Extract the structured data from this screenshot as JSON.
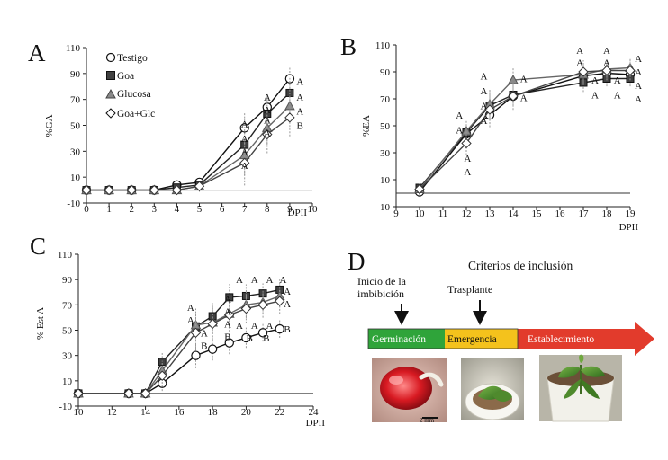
{
  "colors": {
    "germination": "#2fa43a",
    "emergence": "#f4c21c",
    "establishment": "#e23b2c",
    "testigo_fill": "#ffffff",
    "goa_fill": "#404040",
    "glucosa_fill": "#8a8a8a",
    "goaglc_fill": "#ffffff"
  },
  "chart_data": [
    {
      "panel": "A",
      "type": "line",
      "ylabel": "%GA",
      "xlabel": "DPII",
      "xlim": [
        0,
        10
      ],
      "ylim": [
        -10,
        110
      ],
      "xticks": [
        0,
        1,
        2,
        3,
        4,
        5,
        6,
        7,
        8,
        9,
        10
      ],
      "yticks": [
        -10,
        10,
        30,
        50,
        70,
        90,
        110
      ],
      "x": [
        0,
        1,
        2,
        3,
        4,
        5,
        7,
        8,
        9
      ],
      "legend": [
        "Testigo",
        "Goa",
        "Glucosa",
        "Goa+Glc"
      ],
      "series": [
        {
          "name": "Testigo",
          "marker": "circle",
          "values": [
            0,
            0,
            0,
            0,
            4,
            6,
            48,
            64,
            86
          ]
        },
        {
          "name": "Goa",
          "marker": "square",
          "values": [
            0,
            0,
            0,
            0,
            2,
            4,
            35,
            59,
            75
          ]
        },
        {
          "name": "Glucosa",
          "marker": "triangle",
          "values": [
            0,
            0,
            0,
            0,
            0,
            3,
            27,
            48,
            65
          ]
        },
        {
          "name": "Goa+Glc",
          "marker": "diamond",
          "values": [
            0,
            0,
            0,
            0,
            0,
            3,
            21,
            43,
            56
          ]
        }
      ],
      "annotations": [
        {
          "x": 7,
          "y": 51,
          "label": "A"
        },
        {
          "x": 7,
          "y": 40,
          "label": "A"
        },
        {
          "x": 7,
          "y": 30,
          "label": "A"
        },
        {
          "x": 7,
          "y": 19,
          "label": "A"
        },
        {
          "x": 8,
          "y": 72,
          "label": "A"
        },
        {
          "x": 8,
          "y": 62,
          "label": "A"
        },
        {
          "x": 8,
          "y": 54,
          "label": "A"
        },
        {
          "x": 8,
          "y": 44,
          "label": "A"
        },
        {
          "x": 9.45,
          "y": 84,
          "label": "A"
        },
        {
          "x": 9.45,
          "y": 72,
          "label": "A"
        },
        {
          "x": 9.45,
          "y": 61,
          "label": "A"
        },
        {
          "x": 9.45,
          "y": 50,
          "label": "B"
        }
      ]
    },
    {
      "panel": "B",
      "type": "line",
      "ylabel": "%EA",
      "xlabel": "DPII",
      "xlim": [
        9,
        19
      ],
      "ylim": [
        -10,
        110
      ],
      "xticks": [
        9,
        10,
        11,
        12,
        13,
        14,
        15,
        16,
        17,
        18,
        19
      ],
      "yticks": [
        -10,
        10,
        30,
        50,
        70,
        90,
        110
      ],
      "x": [
        10,
        12,
        13,
        14,
        17,
        18,
        19
      ],
      "series": [
        {
          "name": "Testigo",
          "marker": "circle",
          "values": [
            1,
            44,
            58,
            72,
            87,
            89,
            88
          ]
        },
        {
          "name": "Goa",
          "marker": "square",
          "values": [
            4,
            45,
            65,
            73,
            82,
            85,
            85
          ]
        },
        {
          "name": "Glucosa",
          "marker": "triangle",
          "values": [
            3,
            46,
            66,
            84,
            88,
            92,
            93
          ]
        },
        {
          "name": "Goa+Glc",
          "marker": "diamond",
          "values": [
            3,
            37,
            62,
            72,
            90,
            91,
            91
          ]
        }
      ],
      "annotations": [
        {
          "x": 11.7,
          "y": 58,
          "label": "A"
        },
        {
          "x": 11.7,
          "y": 47,
          "label": "A"
        },
        {
          "x": 12.05,
          "y": 26,
          "label": "A"
        },
        {
          "x": 12.05,
          "y": 16,
          "label": "A"
        },
        {
          "x": 12.75,
          "y": 87,
          "label": "A"
        },
        {
          "x": 12.75,
          "y": 76,
          "label": "A"
        },
        {
          "x": 12.75,
          "y": 65,
          "label": "A"
        },
        {
          "x": 12.75,
          "y": 54,
          "label": "A"
        },
        {
          "x": 14.45,
          "y": 85,
          "label": "A"
        },
        {
          "x": 14.45,
          "y": 71,
          "label": "A"
        },
        {
          "x": 16.85,
          "y": 106,
          "label": "A"
        },
        {
          "x": 16.85,
          "y": 97,
          "label": "A"
        },
        {
          "x": 17.5,
          "y": 84,
          "label": "A"
        },
        {
          "x": 17.5,
          "y": 73,
          "label": "A"
        },
        {
          "x": 18.0,
          "y": 106,
          "label": "A"
        },
        {
          "x": 18.0,
          "y": 97,
          "label": "A"
        },
        {
          "x": 18.45,
          "y": 84,
          "label": "A"
        },
        {
          "x": 18.45,
          "y": 73,
          "label": "A"
        },
        {
          "x": 19.35,
          "y": 100,
          "label": "A"
        },
        {
          "x": 19.35,
          "y": 90,
          "label": "A"
        },
        {
          "x": 19.35,
          "y": 80,
          "label": "A"
        },
        {
          "x": 19.35,
          "y": 70,
          "label": "A"
        }
      ]
    },
    {
      "panel": "C",
      "type": "line",
      "ylabel": "% Est A",
      "xlabel": "DPII",
      "xlim": [
        10,
        24
      ],
      "ylim": [
        -10,
        110
      ],
      "xticks": [
        10,
        12,
        14,
        16,
        18,
        20,
        22,
        24
      ],
      "yticks": [
        -10,
        10,
        30,
        50,
        70,
        90,
        110
      ],
      "x": [
        10,
        13,
        14,
        15,
        17,
        18,
        19,
        20,
        21,
        22
      ],
      "series": [
        {
          "name": "Testigo",
          "marker": "circle",
          "values": [
            0,
            0,
            0,
            8,
            30,
            35,
            40,
            44,
            48,
            51
          ]
        },
        {
          "name": "Goa",
          "marker": "square",
          "values": [
            0,
            0,
            0,
            25,
            53,
            61,
            76,
            77,
            79,
            82
          ]
        },
        {
          "name": "Glucosa",
          "marker": "triangle",
          "values": [
            0,
            0,
            0,
            18,
            54,
            56,
            63,
            70,
            72,
            77
          ]
        },
        {
          "name": "Goa+Glc",
          "marker": "diamond",
          "values": [
            0,
            0,
            0,
            14,
            48,
            55,
            62,
            67,
            70,
            73
          ]
        }
      ],
      "annotations": [
        {
          "x": 16.7,
          "y": 68,
          "label": "A"
        },
        {
          "x": 16.7,
          "y": 58,
          "label": "A"
        },
        {
          "x": 17.5,
          "y": 48,
          "label": "A"
        },
        {
          "x": 17.5,
          "y": 38,
          "label": "B"
        },
        {
          "x": 18.9,
          "y": 75,
          "label": "A"
        },
        {
          "x": 18.9,
          "y": 65,
          "label": "A"
        },
        {
          "x": 18.9,
          "y": 55,
          "label": "A"
        },
        {
          "x": 18.9,
          "y": 45,
          "label": "B"
        },
        {
          "x": 19.6,
          "y": 90,
          "label": "A"
        },
        {
          "x": 19.6,
          "y": 54,
          "label": "A"
        },
        {
          "x": 20.5,
          "y": 90,
          "label": "A"
        },
        {
          "x": 20.5,
          "y": 54,
          "label": "A"
        },
        {
          "x": 20.2,
          "y": 44,
          "label": "B"
        },
        {
          "x": 21.4,
          "y": 90,
          "label": "A"
        },
        {
          "x": 21.4,
          "y": 54,
          "label": "A"
        },
        {
          "x": 21.2,
          "y": 44,
          "label": "B"
        },
        {
          "x": 22.2,
          "y": 90,
          "label": "A"
        },
        {
          "x": 22.45,
          "y": 81,
          "label": "A"
        },
        {
          "x": 22.45,
          "y": 71,
          "label": "A"
        },
        {
          "x": 22.45,
          "y": 51,
          "label": "B"
        }
      ]
    }
  ],
  "panels": {
    "a_letter": "A",
    "b_letter": "B",
    "c_letter": "C",
    "d_letter": "D"
  },
  "panel_d": {
    "title": "Criterios de inclusión",
    "label_start_line1": "Inicio de la",
    "label_start_line2": "imbibición",
    "label_transplant": "Trasplante",
    "stages": [
      "Germinación",
      "Emergencia",
      "Establecimiento"
    ],
    "scale_bar": "2 mm",
    "photos": [
      "germinated-seed-photo",
      "emerging-seedling-photo",
      "established-plant-photo"
    ]
  }
}
